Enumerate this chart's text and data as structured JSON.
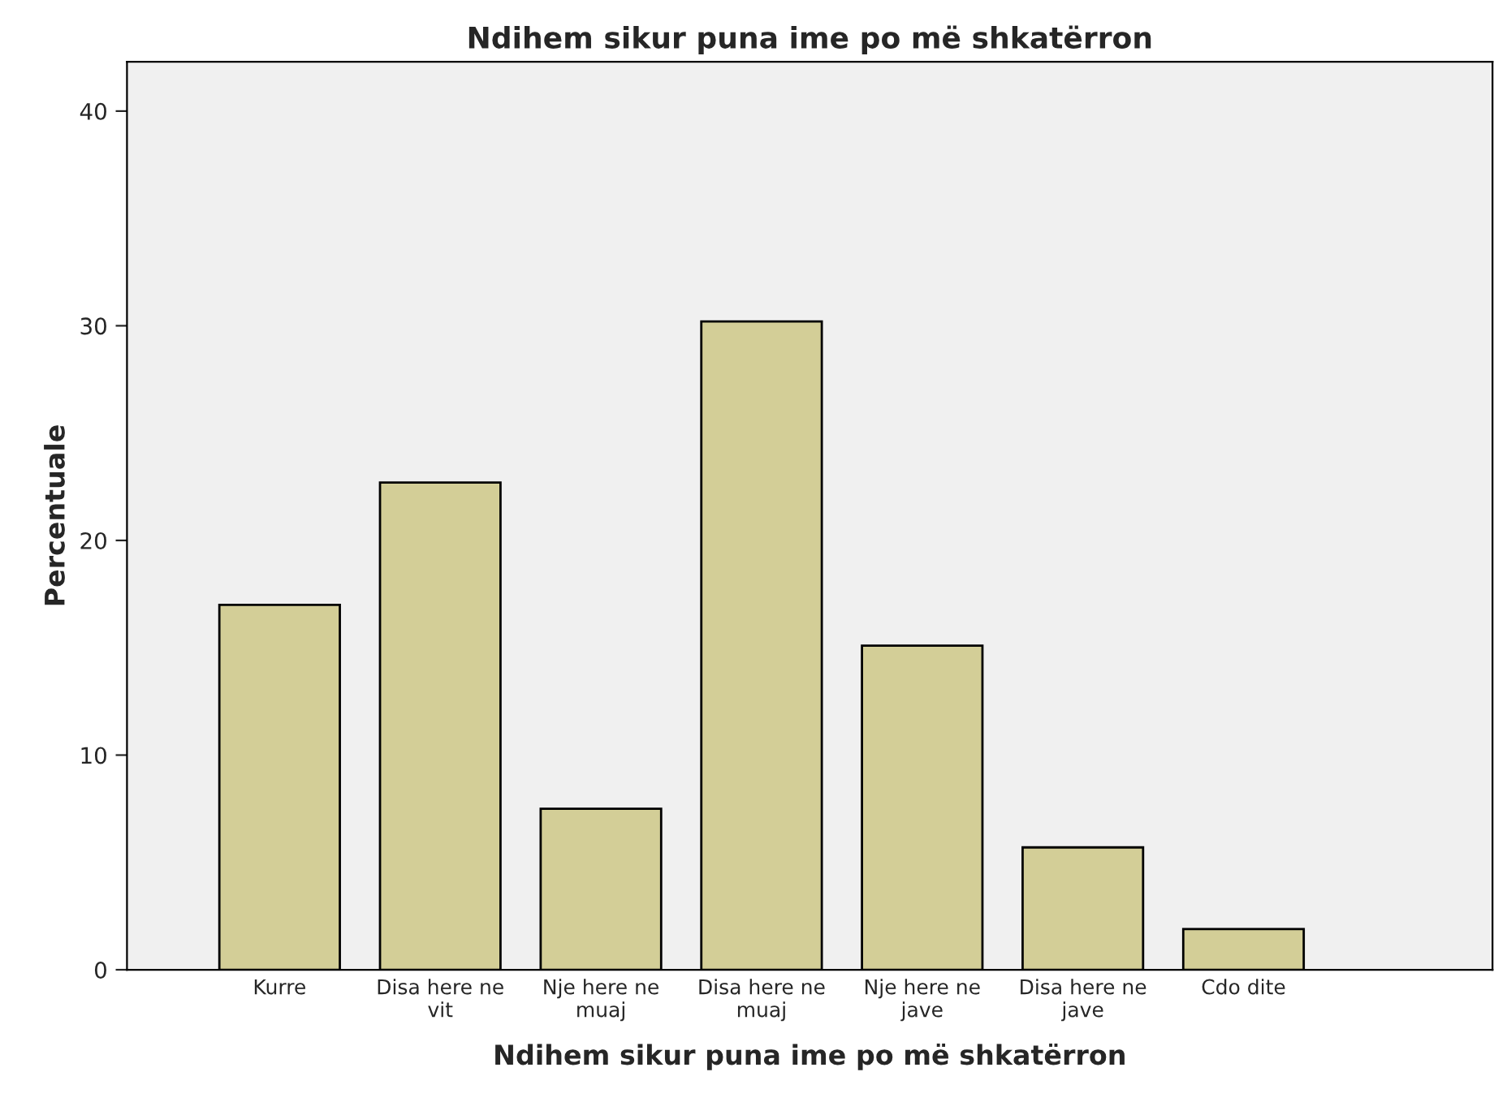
{
  "chart_data": {
    "type": "bar",
    "title": "Ndihem sikur puna ime po më shkatërron",
    "xlabel": "Ndihem sikur puna ime po më shkatërron",
    "ylabel": "Percentuale",
    "categories": [
      "Kurre",
      "Disa here ne\nvit",
      "Nje here ne\nmuaj",
      "Disa here ne\nmuaj",
      "Nje here ne\njave",
      "Disa here ne\njave",
      "Cdo dite"
    ],
    "values": [
      17.0,
      22.7,
      7.5,
      30.2,
      15.1,
      5.7,
      1.9
    ],
    "color": "#d3ce97",
    "ylim": [
      0,
      42.3
    ],
    "yticks": [
      0,
      10,
      20,
      30,
      40
    ],
    "grid": false
  }
}
